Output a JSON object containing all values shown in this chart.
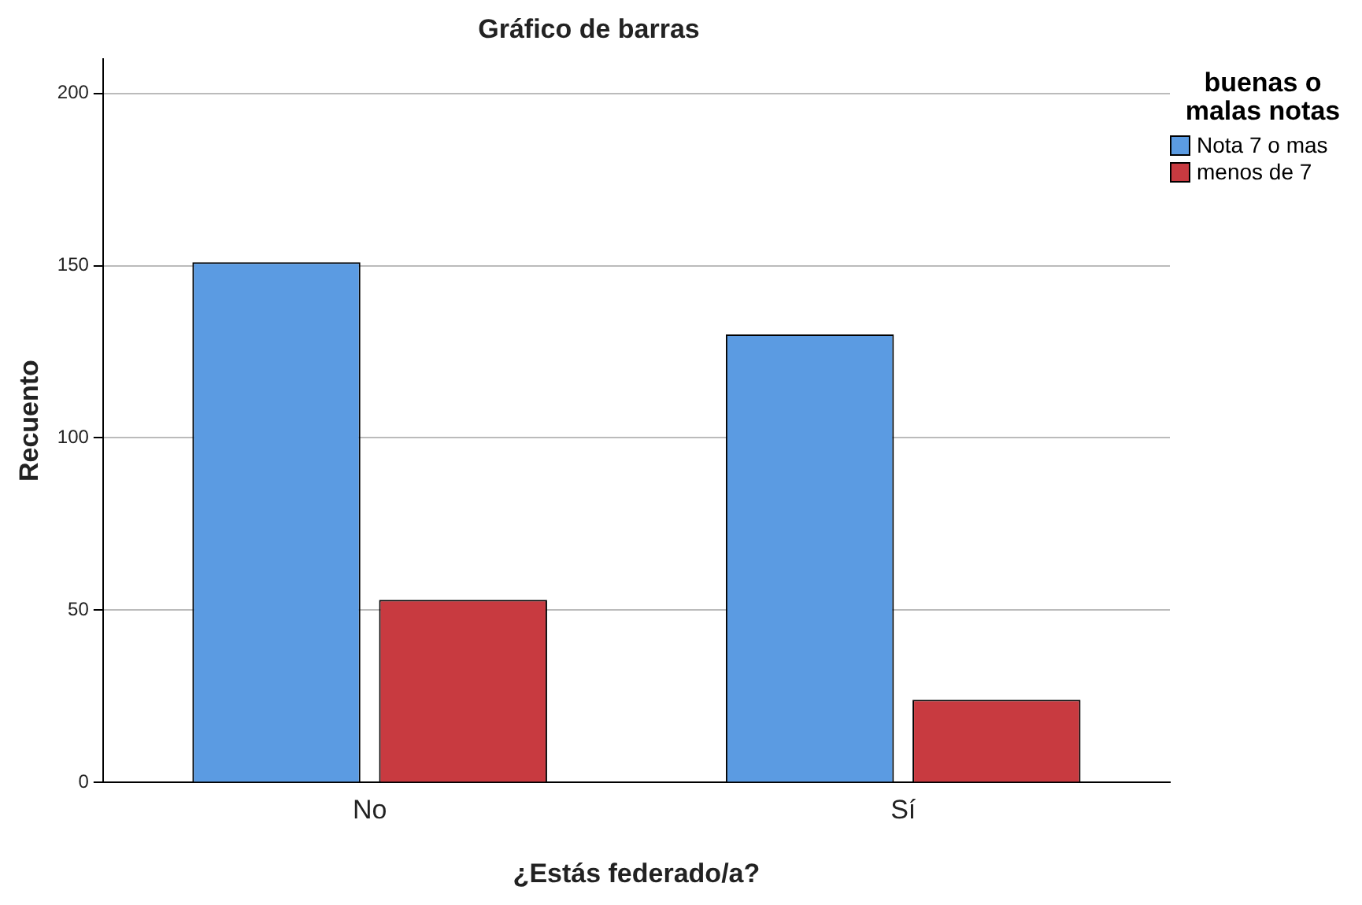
{
  "chart_data": {
    "type": "bar",
    "title": "Gráfico de barras",
    "xlabel": "¿Estás federado/a?",
    "ylabel": "Recuento",
    "legend_title": "buenas o malas notas",
    "legend": "top right",
    "grid": "y",
    "categories": [
      "No",
      "Sí"
    ],
    "ylim": [
      0,
      210
    ],
    "yticks": [
      0,
      50,
      100,
      150,
      200
    ],
    "series": [
      {
        "name": "Nota 7 o mas",
        "color": "#5b9be2",
        "values": [
          151,
          130
        ]
      },
      {
        "name": "menos de 7",
        "color": "#c83a40",
        "values": [
          53,
          24
        ]
      }
    ]
  }
}
